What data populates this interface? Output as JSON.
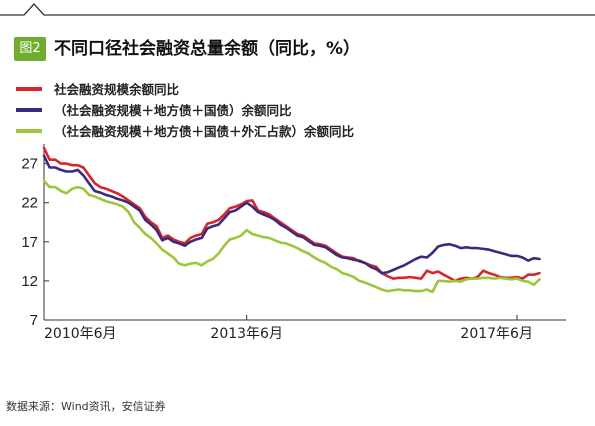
{
  "figure": {
    "badge": "图2",
    "title": "不同口径社会融资总量余额（同比，%）",
    "source": "数据来源：Wind资讯，安信证券",
    "accent_color": "#6fae2c"
  },
  "chart_data": {
    "type": "line",
    "title": "不同口径社会融资总量余额（同比，%）",
    "xlabel": "",
    "ylabel": "",
    "ylim": [
      7,
      29
    ],
    "yticks": [
      7,
      12,
      17,
      22,
      27
    ],
    "xtick_labels": [
      "2010年6月",
      "2013年6月",
      "2017年6月"
    ],
    "xtick_positions": [
      "2010-06",
      "2013-06",
      "2017-06"
    ],
    "x_range": [
      "2010-06",
      "2018-02"
    ],
    "grid": false,
    "legend_position": "top-left",
    "series": [
      {
        "name": "社会融资规模余额同比",
        "color": "#d7262b",
        "points": [
          [
            "2010-06",
            29.0
          ],
          [
            "2010-07",
            27.5
          ],
          [
            "2010-08",
            27.5
          ],
          [
            "2010-09",
            27.0
          ],
          [
            "2010-10",
            27.0
          ],
          [
            "2010-11",
            26.8
          ],
          [
            "2010-12",
            26.8
          ],
          [
            "2011-01",
            26.5
          ],
          [
            "2011-02",
            25.5
          ],
          [
            "2011-03",
            24.5
          ],
          [
            "2011-04",
            24.0
          ],
          [
            "2011-05",
            23.8
          ],
          [
            "2011-06",
            23.5
          ],
          [
            "2011-07",
            23.2
          ],
          [
            "2011-08",
            22.8
          ],
          [
            "2011-09",
            22.3
          ],
          [
            "2011-10",
            21.8
          ],
          [
            "2011-11",
            21.3
          ],
          [
            "2011-12",
            20.2
          ],
          [
            "2012-01",
            19.5
          ],
          [
            "2012-02",
            19.0
          ],
          [
            "2012-03",
            17.5
          ],
          [
            "2012-04",
            17.8
          ],
          [
            "2012-05",
            17.3
          ],
          [
            "2012-06",
            17.0
          ],
          [
            "2012-07",
            16.8
          ],
          [
            "2012-08",
            17.5
          ],
          [
            "2012-09",
            17.8
          ],
          [
            "2012-10",
            18.0
          ],
          [
            "2012-11",
            19.3
          ],
          [
            "2012-12",
            19.5
          ],
          [
            "2013-01",
            19.8
          ],
          [
            "2013-02",
            20.5
          ],
          [
            "2013-03",
            21.3
          ],
          [
            "2013-04",
            21.5
          ],
          [
            "2013-05",
            21.8
          ],
          [
            "2013-06",
            22.2
          ],
          [
            "2013-07",
            22.3
          ],
          [
            "2013-08",
            21.0
          ],
          [
            "2013-09",
            20.8
          ],
          [
            "2013-10",
            20.5
          ],
          [
            "2013-11",
            20.0
          ],
          [
            "2013-12",
            19.5
          ],
          [
            "2014-01",
            19.0
          ],
          [
            "2014-02",
            18.5
          ],
          [
            "2014-03",
            18.0
          ],
          [
            "2014-04",
            17.8
          ],
          [
            "2014-05",
            17.3
          ],
          [
            "2014-06",
            16.8
          ],
          [
            "2014-07",
            16.7
          ],
          [
            "2014-08",
            16.5
          ],
          [
            "2014-09",
            16.0
          ],
          [
            "2014-10",
            15.5
          ],
          [
            "2014-11",
            15.1
          ],
          [
            "2014-12",
            15.0
          ],
          [
            "2015-01",
            14.9
          ],
          [
            "2015-02",
            14.5
          ],
          [
            "2015-03",
            14.3
          ],
          [
            "2015-04",
            14.0
          ],
          [
            "2015-05",
            13.8
          ],
          [
            "2015-06",
            13.0
          ],
          [
            "2015-07",
            12.6
          ],
          [
            "2015-08",
            12.3
          ],
          [
            "2015-09",
            12.4
          ],
          [
            "2015-10",
            12.4
          ],
          [
            "2015-11",
            12.5
          ],
          [
            "2015-12",
            12.4
          ],
          [
            "2016-01",
            12.3
          ],
          [
            "2016-02",
            13.3
          ],
          [
            "2016-03",
            13.0
          ],
          [
            "2016-04",
            13.2
          ],
          [
            "2016-05",
            12.8
          ],
          [
            "2016-06",
            12.4
          ],
          [
            "2016-07",
            12.0
          ],
          [
            "2016-08",
            12.3
          ],
          [
            "2016-09",
            12.4
          ],
          [
            "2016-10",
            12.3
          ],
          [
            "2016-11",
            12.5
          ],
          [
            "2016-12",
            13.3
          ],
          [
            "2017-01",
            13.0
          ],
          [
            "2017-02",
            12.8
          ],
          [
            "2017-03",
            12.5
          ],
          [
            "2017-04",
            12.4
          ],
          [
            "2017-05",
            12.4
          ],
          [
            "2017-06",
            12.5
          ],
          [
            "2017-07",
            12.3
          ],
          [
            "2017-08",
            12.8
          ],
          [
            "2017-09",
            12.8
          ],
          [
            "2017-10",
            13.0
          ]
        ]
      },
      {
        "name": "（社会融资规模＋地方债＋国债）余额同比",
        "color": "#3d2a7d",
        "points": [
          [
            "2010-06",
            28.0
          ],
          [
            "2010-07",
            26.5
          ],
          [
            "2010-08",
            26.5
          ],
          [
            "2010-09",
            26.2
          ],
          [
            "2010-10",
            26.0
          ],
          [
            "2010-11",
            26.0
          ],
          [
            "2010-12",
            26.2
          ],
          [
            "2011-01",
            25.5
          ],
          [
            "2011-02",
            24.5
          ],
          [
            "2011-03",
            23.5
          ],
          [
            "2011-04",
            23.3
          ],
          [
            "2011-05",
            23.0
          ],
          [
            "2011-06",
            22.8
          ],
          [
            "2011-07",
            22.5
          ],
          [
            "2011-08",
            22.3
          ],
          [
            "2011-09",
            22.0
          ],
          [
            "2011-10",
            21.5
          ],
          [
            "2011-11",
            21.0
          ],
          [
            "2011-12",
            19.8
          ],
          [
            "2012-01",
            19.2
          ],
          [
            "2012-02",
            18.5
          ],
          [
            "2012-03",
            17.2
          ],
          [
            "2012-04",
            17.5
          ],
          [
            "2012-05",
            17.0
          ],
          [
            "2012-06",
            16.8
          ],
          [
            "2012-07",
            16.5
          ],
          [
            "2012-08",
            17.0
          ],
          [
            "2012-09",
            17.3
          ],
          [
            "2012-10",
            17.5
          ],
          [
            "2012-11",
            18.7
          ],
          [
            "2012-12",
            19.0
          ],
          [
            "2013-01",
            19.2
          ],
          [
            "2013-02",
            20.0
          ],
          [
            "2013-03",
            20.8
          ],
          [
            "2013-04",
            21.0
          ],
          [
            "2013-05",
            21.5
          ],
          [
            "2013-06",
            22.0
          ],
          [
            "2013-07",
            21.5
          ],
          [
            "2013-08",
            20.8
          ],
          [
            "2013-09",
            20.5
          ],
          [
            "2013-10",
            20.2
          ],
          [
            "2013-11",
            19.8
          ],
          [
            "2013-12",
            19.2
          ],
          [
            "2014-01",
            18.8
          ],
          [
            "2014-02",
            18.3
          ],
          [
            "2014-03",
            17.8
          ],
          [
            "2014-04",
            17.6
          ],
          [
            "2014-05",
            17.1
          ],
          [
            "2014-06",
            16.6
          ],
          [
            "2014-07",
            16.5
          ],
          [
            "2014-08",
            16.3
          ],
          [
            "2014-09",
            15.8
          ],
          [
            "2014-10",
            15.3
          ],
          [
            "2014-11",
            15.0
          ],
          [
            "2014-12",
            14.9
          ],
          [
            "2015-01",
            14.7
          ],
          [
            "2015-02",
            14.6
          ],
          [
            "2015-03",
            14.3
          ],
          [
            "2015-04",
            13.8
          ],
          [
            "2015-05",
            13.5
          ],
          [
            "2015-06",
            13.0
          ],
          [
            "2015-07",
            13.1
          ],
          [
            "2015-08",
            13.4
          ],
          [
            "2015-09",
            13.7
          ],
          [
            "2015-10",
            14.0
          ],
          [
            "2015-11",
            14.4
          ],
          [
            "2015-12",
            14.8
          ],
          [
            "2016-01",
            15.1
          ],
          [
            "2016-02",
            15.0
          ],
          [
            "2016-03",
            15.6
          ],
          [
            "2016-04",
            16.4
          ],
          [
            "2016-05",
            16.6
          ],
          [
            "2016-06",
            16.7
          ],
          [
            "2016-07",
            16.5
          ],
          [
            "2016-08",
            16.2
          ],
          [
            "2016-09",
            16.3
          ],
          [
            "2016-10",
            16.2
          ],
          [
            "2016-11",
            16.2
          ],
          [
            "2016-12",
            16.1
          ],
          [
            "2017-01",
            16.0
          ],
          [
            "2017-02",
            15.8
          ],
          [
            "2017-03",
            15.6
          ],
          [
            "2017-04",
            15.4
          ],
          [
            "2017-05",
            15.2
          ],
          [
            "2017-06",
            15.2
          ],
          [
            "2017-07",
            15.0
          ],
          [
            "2017-08",
            14.6
          ],
          [
            "2017-09",
            14.9
          ],
          [
            "2017-10",
            14.8
          ]
        ]
      },
      {
        "name": "（社会融资规模＋地方债＋国债＋外汇占款）余额同比",
        "color": "#9cc63b",
        "points": [
          [
            "2010-06",
            24.8
          ],
          [
            "2010-07",
            24.0
          ],
          [
            "2010-08",
            24.0
          ],
          [
            "2010-09",
            23.5
          ],
          [
            "2010-10",
            23.2
          ],
          [
            "2010-11",
            23.8
          ],
          [
            "2010-12",
            24.0
          ],
          [
            "2011-01",
            23.8
          ],
          [
            "2011-02",
            23.0
          ],
          [
            "2011-03",
            22.8
          ],
          [
            "2011-04",
            22.5
          ],
          [
            "2011-05",
            22.2
          ],
          [
            "2011-06",
            22.0
          ],
          [
            "2011-07",
            21.8
          ],
          [
            "2011-08",
            21.5
          ],
          [
            "2011-09",
            20.8
          ],
          [
            "2011-10",
            19.5
          ],
          [
            "2011-11",
            18.8
          ],
          [
            "2011-12",
            18.0
          ],
          [
            "2012-01",
            17.5
          ],
          [
            "2012-02",
            16.8
          ],
          [
            "2012-03",
            16.0
          ],
          [
            "2012-04",
            15.5
          ],
          [
            "2012-05",
            15.0
          ],
          [
            "2012-06",
            14.2
          ],
          [
            "2012-07",
            14.0
          ],
          [
            "2012-08",
            14.2
          ],
          [
            "2012-09",
            14.3
          ],
          [
            "2012-10",
            14.0
          ],
          [
            "2012-11",
            14.5
          ],
          [
            "2012-12",
            14.8
          ],
          [
            "2013-01",
            15.5
          ],
          [
            "2013-02",
            16.5
          ],
          [
            "2013-03",
            17.3
          ],
          [
            "2013-04",
            17.5
          ],
          [
            "2013-05",
            17.8
          ],
          [
            "2013-06",
            18.5
          ],
          [
            "2013-07",
            18.0
          ],
          [
            "2013-08",
            17.8
          ],
          [
            "2013-09",
            17.6
          ],
          [
            "2013-10",
            17.5
          ],
          [
            "2013-11",
            17.2
          ],
          [
            "2013-12",
            16.9
          ],
          [
            "2014-01",
            16.8
          ],
          [
            "2014-02",
            16.5
          ],
          [
            "2014-03",
            16.2
          ],
          [
            "2014-04",
            15.8
          ],
          [
            "2014-05",
            15.5
          ],
          [
            "2014-06",
            15.0
          ],
          [
            "2014-07",
            14.6
          ],
          [
            "2014-08",
            14.3
          ],
          [
            "2014-09",
            13.8
          ],
          [
            "2014-10",
            13.5
          ],
          [
            "2014-11",
            13.0
          ],
          [
            "2014-12",
            12.8
          ],
          [
            "2015-01",
            12.5
          ],
          [
            "2015-02",
            12.0
          ],
          [
            "2015-03",
            11.8
          ],
          [
            "2015-04",
            11.5
          ],
          [
            "2015-05",
            11.2
          ],
          [
            "2015-06",
            10.9
          ],
          [
            "2015-07",
            10.7
          ],
          [
            "2015-08",
            10.8
          ],
          [
            "2015-09",
            10.9
          ],
          [
            "2015-10",
            10.8
          ],
          [
            "2015-11",
            10.8
          ],
          [
            "2015-12",
            10.7
          ],
          [
            "2016-01",
            10.7
          ],
          [
            "2016-02",
            10.9
          ],
          [
            "2016-03",
            10.6
          ],
          [
            "2016-04",
            12.0
          ],
          [
            "2016-05",
            12.0
          ],
          [
            "2016-06",
            11.9
          ],
          [
            "2016-07",
            12.0
          ],
          [
            "2016-08",
            11.9
          ],
          [
            "2016-09",
            12.2
          ],
          [
            "2016-10",
            12.3
          ],
          [
            "2016-11",
            12.3
          ],
          [
            "2016-12",
            12.4
          ],
          [
            "2017-01",
            12.4
          ],
          [
            "2017-02",
            12.3
          ],
          [
            "2017-03",
            12.4
          ],
          [
            "2017-04",
            12.3
          ],
          [
            "2017-05",
            12.2
          ],
          [
            "2017-06",
            12.3
          ],
          [
            "2017-07",
            12.0
          ],
          [
            "2017-08",
            11.9
          ],
          [
            "2017-09",
            11.5
          ],
          [
            "2017-10",
            12.2
          ]
        ]
      }
    ]
  }
}
